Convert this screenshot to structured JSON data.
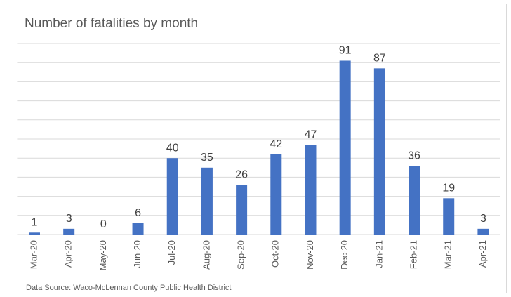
{
  "chart_data": {
    "type": "bar",
    "title": "Number of fatalities by month",
    "categories": [
      "Mar-20",
      "Apr-20",
      "May-20",
      "Jun-20",
      "Jul-20",
      "Aug-20",
      "Sep-20",
      "Oct-20",
      "Nov-20",
      "Dec-20",
      "Jan-21",
      "Feb-21",
      "Mar-21",
      "Apr-21"
    ],
    "values": [
      1,
      3,
      0,
      6,
      40,
      35,
      26,
      42,
      47,
      91,
      87,
      36,
      19,
      3
    ],
    "color": "#4472c4",
    "ylim": [
      0,
      100
    ],
    "yticks": [
      0,
      10,
      20,
      30,
      40,
      50,
      60,
      70,
      80,
      90,
      100
    ],
    "grid": true,
    "source": "Data Source: Waco-McLennan County Public Health District"
  }
}
